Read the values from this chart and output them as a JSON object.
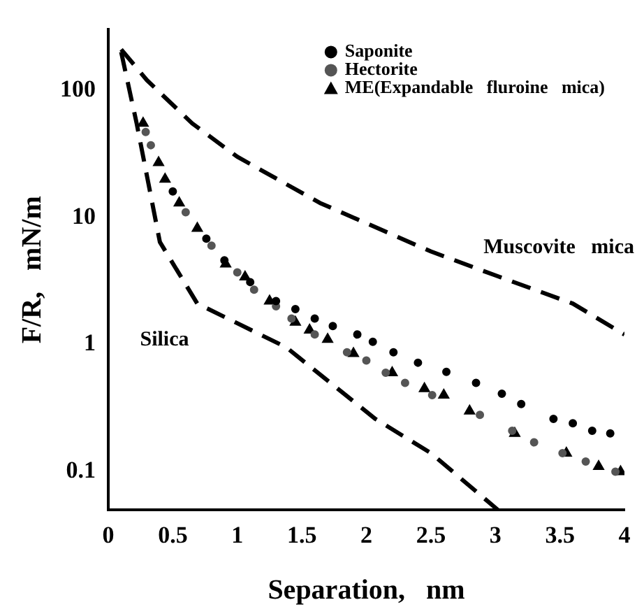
{
  "chart_data": {
    "type": "scatter",
    "xlabel": "Separation,   nm",
    "ylabel": "F/R,   mN/m",
    "log": "y",
    "xlim": [
      0,
      4
    ],
    "ylim": [
      0.05,
      300
    ],
    "xticks": [
      0,
      0.5,
      1,
      1.5,
      2,
      2.5,
      3,
      3.5,
      4
    ],
    "yticks": [
      0.1,
      1,
      10,
      100
    ],
    "grid": false,
    "legend": "top right",
    "series": [
      {
        "name": "Saponite",
        "color": "#000000",
        "marker": "circle",
        "x": [
          0.5,
          0.76,
          0.9,
          1.1,
          1.3,
          1.45,
          1.6,
          1.74,
          1.93,
          2.05,
          2.21,
          2.4,
          2.62,
          2.85,
          3.05,
          3.2,
          3.45,
          3.6,
          3.75,
          3.89
        ],
        "values": [
          16,
          6.8,
          4.6,
          3.1,
          2.2,
          1.9,
          1.6,
          1.4,
          1.2,
          1.05,
          0.87,
          0.72,
          0.61,
          0.5,
          0.41,
          0.34,
          0.26,
          0.24,
          0.21,
          0.2
        ]
      },
      {
        "name": "Hectorite",
        "color": "#555555",
        "marker": "circle",
        "x": [
          0.29,
          0.33,
          0.6,
          0.8,
          1.0,
          1.13,
          1.3,
          1.42,
          1.6,
          1.85,
          2.0,
          2.15,
          2.3,
          2.51,
          2.88,
          3.13,
          3.3,
          3.52,
          3.7,
          3.93
        ],
        "values": [
          47,
          37,
          11,
          6,
          3.7,
          2.7,
          2.0,
          1.6,
          1.2,
          0.87,
          0.75,
          0.6,
          0.5,
          0.4,
          0.28,
          0.21,
          0.17,
          0.14,
          0.12,
          0.1
        ]
      },
      {
        "name": "ME(Expandable   fluroine   mica)",
        "color": "#000000",
        "marker": "triangle",
        "x": [
          0.27,
          0.39,
          0.44,
          0.55,
          0.69,
          0.91,
          1.06,
          1.25,
          1.45,
          1.56,
          1.7,
          1.9,
          2.2,
          2.45,
          2.6,
          2.8,
          3.15,
          3.55,
          3.8,
          3.97
        ],
        "values": [
          55,
          27,
          20,
          13,
          8.2,
          4.3,
          3.4,
          2.2,
          1.5,
          1.3,
          1.1,
          0.85,
          0.6,
          0.45,
          0.4,
          0.3,
          0.2,
          0.14,
          0.11,
          0.1
        ]
      },
      {
        "type": "line",
        "name": "Muscovite   mica",
        "color": "#000000",
        "line_style": "dashed",
        "marker": "none",
        "x": [
          0.1,
          0.3,
          0.65,
          1.0,
          1.64,
          2.5,
          3.0,
          3.6,
          4.0
        ],
        "values": [
          210,
          120,
          55,
          30,
          13,
          5.4,
          3.5,
          2.1,
          1.2
        ]
      },
      {
        "type": "line",
        "name": "Silica",
        "color": "#000000",
        "line_style": "dashed",
        "marker": "none",
        "x": [
          0.1,
          0.22,
          0.4,
          0.69,
          1.38,
          2.07,
          2.5,
          3.02
        ],
        "values": [
          200,
          55,
          6.4,
          2.1,
          0.95,
          0.26,
          0.14,
          0.05
        ]
      }
    ]
  }
}
